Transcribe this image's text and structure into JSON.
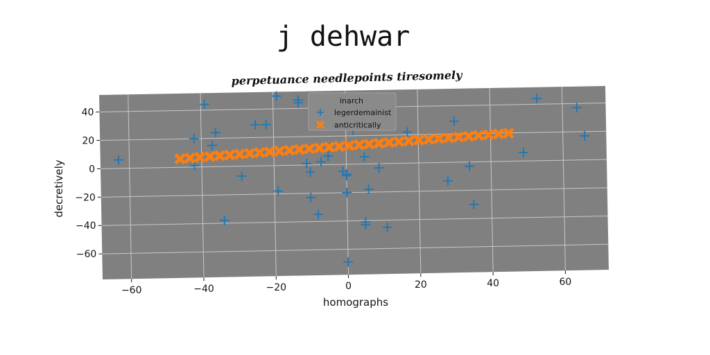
{
  "page": {
    "title": "j dehwar"
  },
  "chart_data": {
    "type": "scatter",
    "title": "perpetuance needlepoints tiresomely",
    "xlabel": "homographs",
    "ylabel": "decretively",
    "xlim": [
      -68,
      72
    ],
    "ylim": [
      -78,
      52
    ],
    "xticks": [
      -60,
      -40,
      -20,
      0,
      20,
      40,
      60
    ],
    "yticks": [
      -60,
      -40,
      -20,
      0,
      20,
      40
    ],
    "xtick_labels": [
      "−60",
      "−40",
      "−20",
      "0",
      "20",
      "40",
      "60"
    ],
    "ytick_labels": [
      "−60",
      "−40",
      "−20",
      "0",
      "20",
      "40"
    ],
    "grid": true,
    "background_color": "#808080",
    "grid_color": "#c8c8c8",
    "legend": {
      "title": "inarch",
      "position": "top-center",
      "entries": [
        "legerdemainist",
        "anticritically"
      ]
    },
    "series": [
      {
        "name": "legerdemainist",
        "marker": "plus",
        "color": "#1f77b4",
        "points": [
          [
            -63,
            6
          ],
          [
            -39,
            44
          ],
          [
            -42,
            20
          ],
          [
            -36,
            24
          ],
          [
            -37,
            15
          ],
          [
            -42,
            1
          ],
          [
            -34,
            -38
          ],
          [
            -29,
            -7
          ],
          [
            -25,
            29
          ],
          [
            -22,
            29
          ],
          [
            -19,
            49
          ],
          [
            -19,
            -18
          ],
          [
            -13,
            46
          ],
          [
            -13,
            44
          ],
          [
            -11,
            1
          ],
          [
            -10,
            -5
          ],
          [
            -10,
            -23
          ],
          [
            -8,
            -35
          ],
          [
            -7,
            2
          ],
          [
            -5,
            6
          ],
          [
            -1,
            -5
          ],
          [
            0,
            -7
          ],
          [
            0,
            -8
          ],
          [
            0,
            -20
          ],
          [
            0,
            -69
          ],
          [
            2,
            24
          ],
          [
            5,
            5
          ],
          [
            5,
            -43
          ],
          [
            5,
            -41
          ],
          [
            6,
            -18
          ],
          [
            9,
            -3
          ],
          [
            11,
            -45
          ],
          [
            17,
            22
          ],
          [
            28,
            -13
          ],
          [
            30,
            29
          ],
          [
            34,
            -3
          ],
          [
            35,
            -30
          ],
          [
            49,
            6
          ],
          [
            53,
            44
          ],
          [
            64,
            37
          ],
          [
            66,
            17
          ]
        ]
      },
      {
        "name": "anticritically",
        "marker": "x-filled",
        "color": "#ff7f0e",
        "line": {
          "slope": 0.1538,
          "intercept": 13,
          "x_start": -46,
          "x_end": 45,
          "count": 34
        }
      }
    ]
  }
}
